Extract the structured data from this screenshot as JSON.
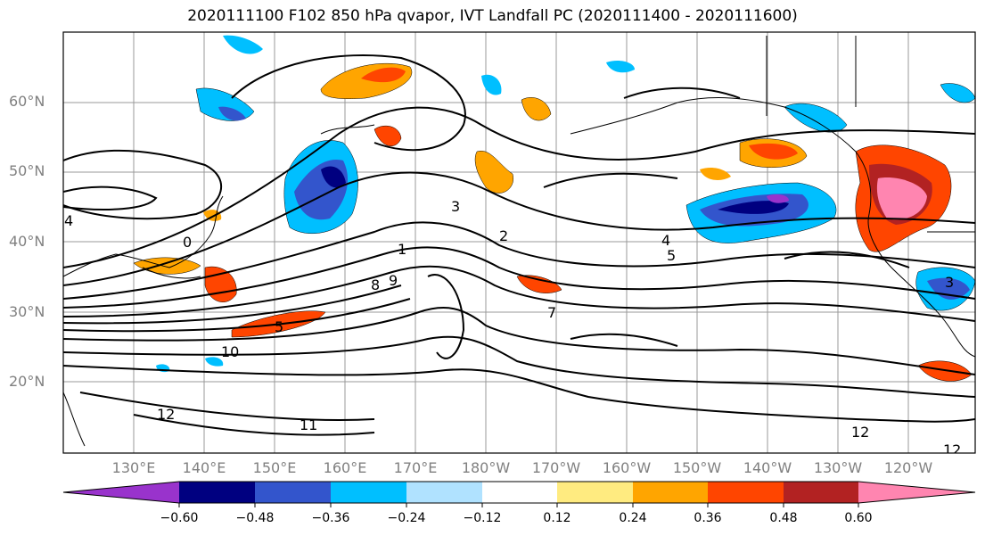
{
  "title": "2020111100 F102 850 hPa qvapor, IVT Landfall PC (2020111400 - 2020111600)",
  "lat_labels": [
    "60°N",
    "50°N",
    "40°N",
    "30°N",
    "20°N"
  ],
  "lon_labels": [
    "130°E",
    "140°E",
    "150°E",
    "160°E",
    "170°E",
    "180°W",
    "170°W",
    "160°W",
    "150°W",
    "140°W",
    "130°W",
    "120°W"
  ],
  "colorbar": {
    "colors": [
      "#9933cc",
      "#000080",
      "#3355cc",
      "#00bfff",
      "#b0e2ff",
      "#ffffff",
      "#ffeb80",
      "#ffa500",
      "#ff4500",
      "#b22222",
      "#ff85b0"
    ],
    "tick_labels": [
      "−0.60",
      "−0.48",
      "−0.36",
      "−0.24",
      "−0.12",
      "0.12",
      "0.24",
      "0.36",
      "0.48",
      "0.60"
    ]
  },
  "contour_labels": [
    "4",
    "0",
    "3",
    "2",
    "1",
    "8",
    "9",
    "4",
    "5",
    "10",
    "7",
    "11",
    "12",
    "12",
    "12",
    "5",
    "3"
  ]
}
